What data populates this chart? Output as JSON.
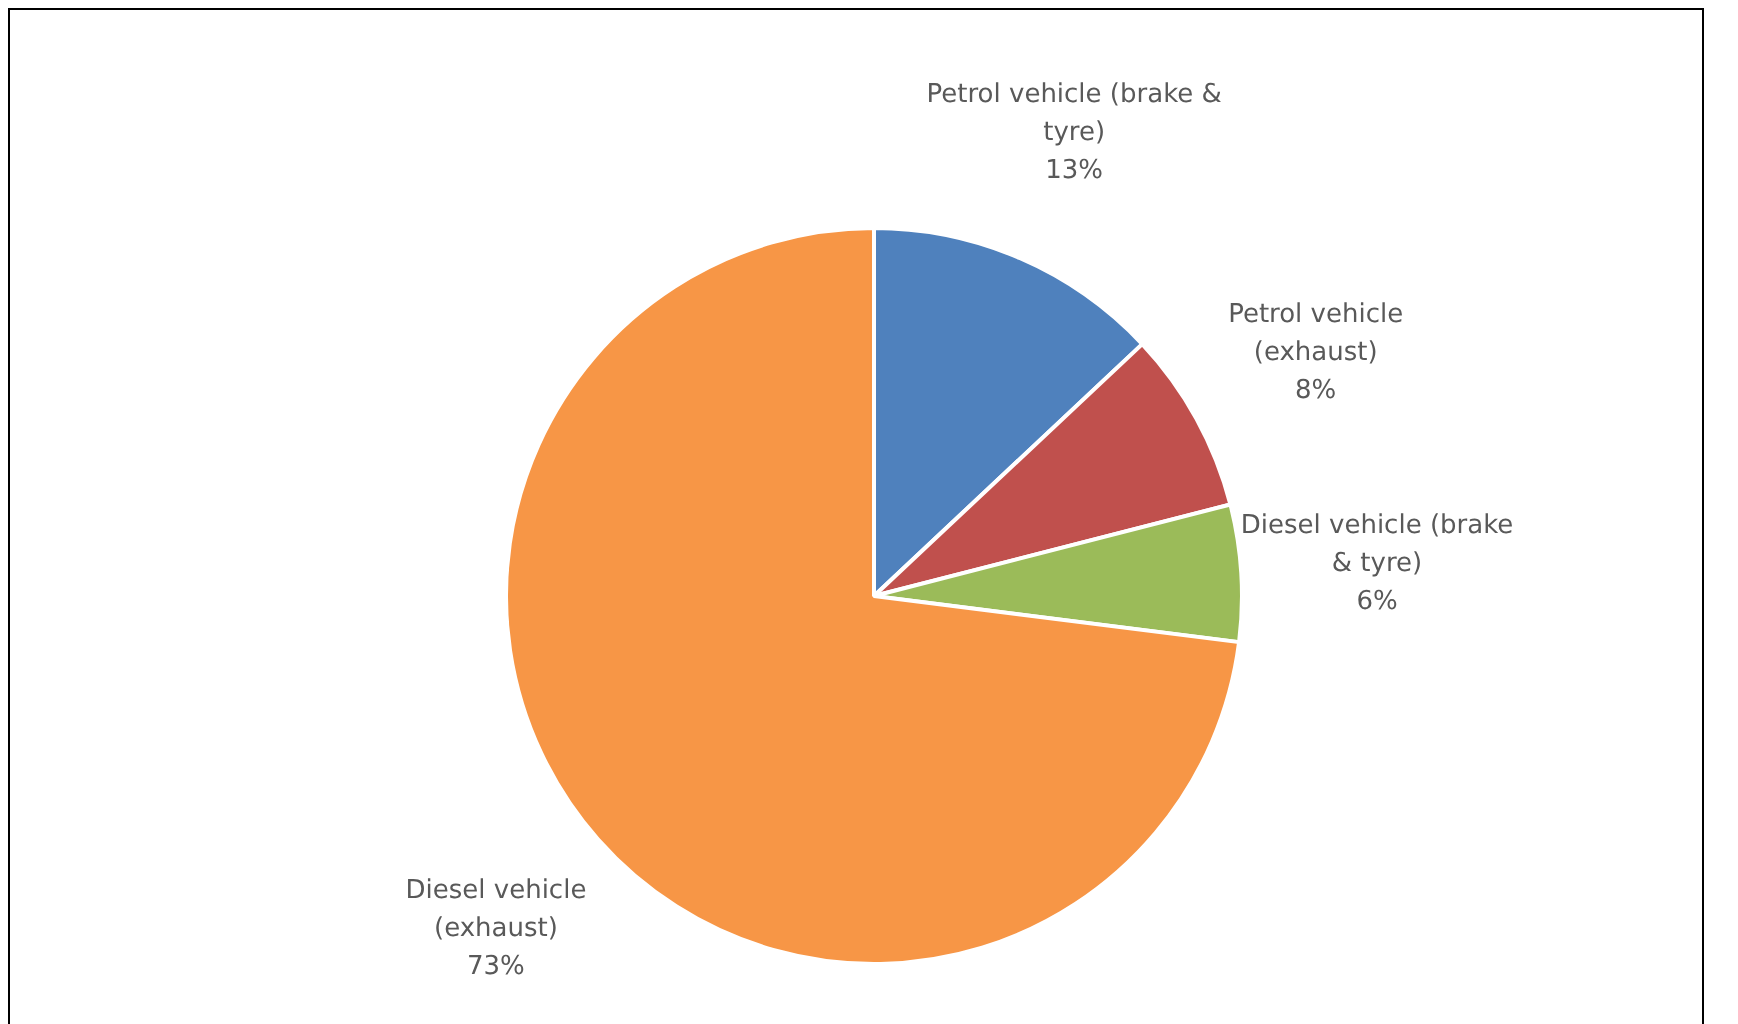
{
  "chart_data": {
    "type": "pie",
    "categories": [
      "Petrol vehicle (brake & tyre)",
      "Petrol vehicle (exhaust)",
      "Diesel vehicle (brake & tyre)",
      "Diesel vehicle (exhaust)"
    ],
    "values": [
      13,
      8,
      6,
      73
    ],
    "colors": [
      "#4f81bd",
      "#c0504d",
      "#9bbb59",
      "#f79646"
    ],
    "value_labels": [
      "13%",
      "8%",
      "6%",
      "73%"
    ],
    "legend": false
  }
}
